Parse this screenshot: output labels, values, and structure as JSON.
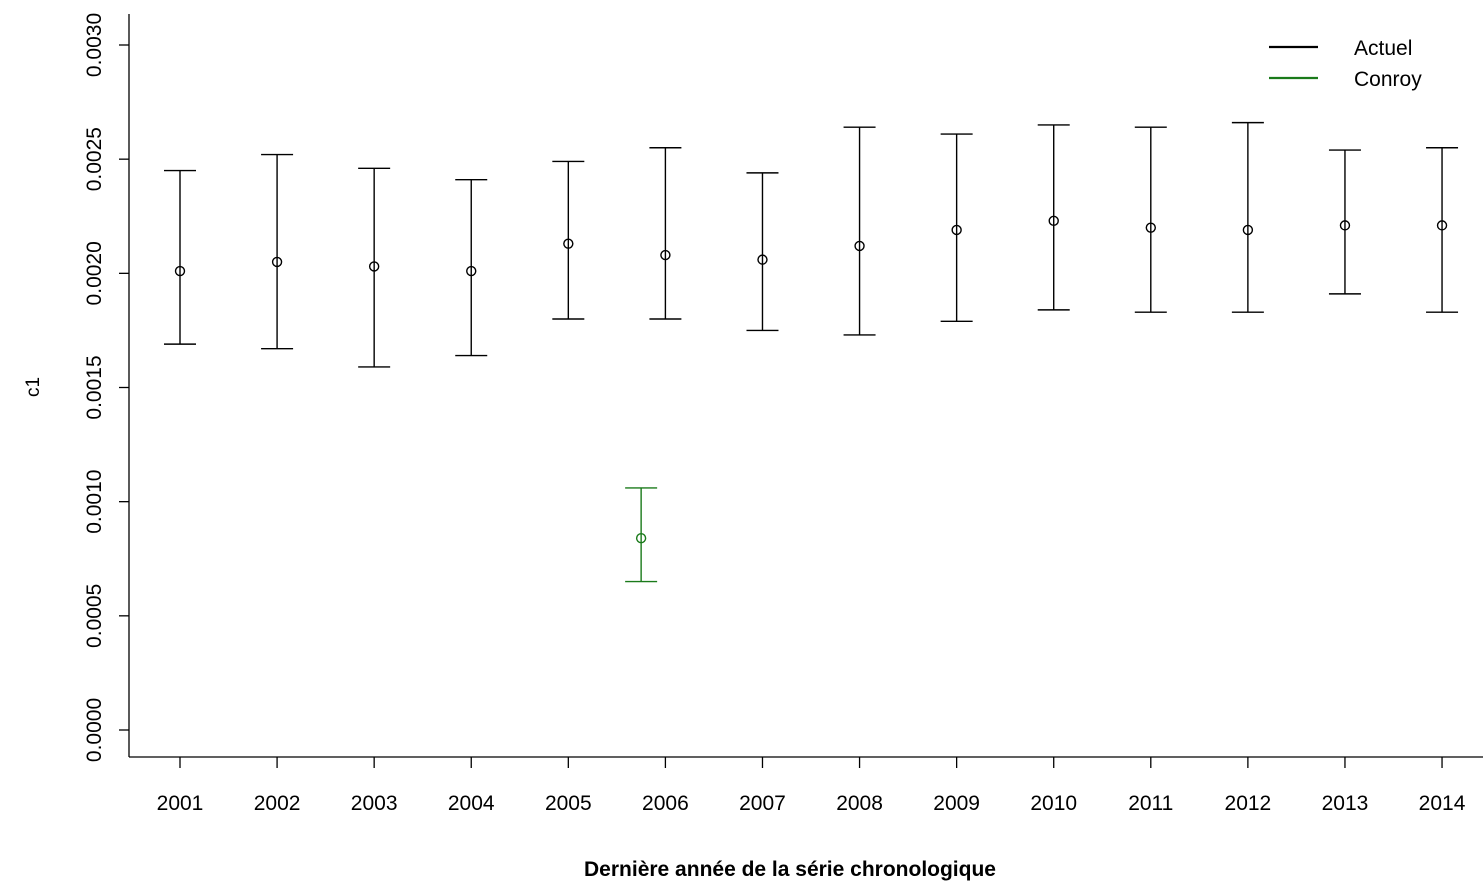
{
  "chart_data": {
    "type": "scatter",
    "title": "",
    "xlabel": "Dernière année de la série chronologique",
    "ylabel": "c1",
    "ylim": [
      0,
      0.003
    ],
    "yticks": [
      "0.0000",
      "0.0005",
      "0.0010",
      "0.0015",
      "0.0020",
      "0.0025",
      "0.0030"
    ],
    "x_ticks": [
      "2001",
      "2002",
      "2003",
      "2004",
      "2005",
      "2006",
      "2007",
      "2008",
      "2009",
      "2010",
      "2011",
      "2012",
      "2013",
      "2014"
    ],
    "grid": false,
    "legend_position": "top-right",
    "series": [
      {
        "name": "Actuel",
        "color": "#000000",
        "points": [
          {
            "x": 2001,
            "y": 0.00201,
            "lower": 0.00169,
            "upper": 0.00245
          },
          {
            "x": 2002,
            "y": 0.00205,
            "lower": 0.00167,
            "upper": 0.00252
          },
          {
            "x": 2003,
            "y": 0.00203,
            "lower": 0.00159,
            "upper": 0.00246
          },
          {
            "x": 2004,
            "y": 0.00201,
            "lower": 0.00164,
            "upper": 0.00241
          },
          {
            "x": 2005,
            "y": 0.00213,
            "lower": 0.0018,
            "upper": 0.00249
          },
          {
            "x": 2006,
            "y": 0.00208,
            "lower": 0.0018,
            "upper": 0.00255
          },
          {
            "x": 2007,
            "y": 0.00206,
            "lower": 0.00175,
            "upper": 0.00244
          },
          {
            "x": 2008,
            "y": 0.00212,
            "lower": 0.00173,
            "upper": 0.00264
          },
          {
            "x": 2009,
            "y": 0.00219,
            "lower": 0.00179,
            "upper": 0.00261
          },
          {
            "x": 2010,
            "y": 0.00223,
            "lower": 0.00184,
            "upper": 0.00265
          },
          {
            "x": 2011,
            "y": 0.0022,
            "lower": 0.00183,
            "upper": 0.00264
          },
          {
            "x": 2012,
            "y": 0.00219,
            "lower": 0.00183,
            "upper": 0.00266
          },
          {
            "x": 2013,
            "y": 0.00221,
            "lower": 0.00191,
            "upper": 0.00254
          },
          {
            "x": 2014,
            "y": 0.00221,
            "lower": 0.00183,
            "upper": 0.00255
          }
        ]
      },
      {
        "name": "Conroy",
        "color": "#1a7a1a",
        "points": [
          {
            "x": 2005.75,
            "y": 0.00084,
            "lower": 0.00065,
            "upper": 0.00106
          }
        ]
      }
    ]
  }
}
